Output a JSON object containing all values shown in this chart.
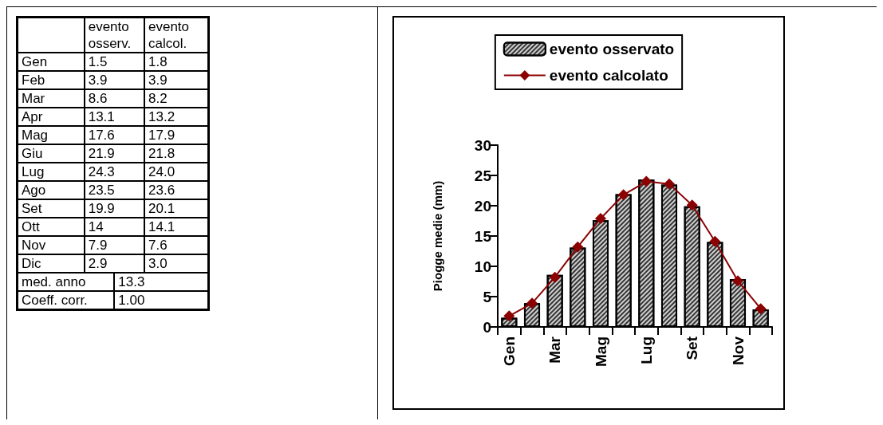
{
  "chart_data": [
    {
      "type": "heatmap",
      "categories": [
        "evento osserv.",
        "evento calcol."
      ],
      "y_categories": [
        "Gen",
        "Feb",
        "Mar",
        "Apr",
        "Mag",
        "Giu",
        "Lug",
        "Ago",
        "Set",
        "Ott",
        "Nov",
        "Dic"
      ],
      "cells": [
        [
          1.5,
          1.8
        ],
        [
          3.9,
          3.9
        ],
        [
          8.6,
          8.2
        ],
        [
          13.1,
          13.2
        ],
        [
          17.6,
          17.9
        ],
        [
          21.9,
          21.8
        ],
        [
          24.3,
          24.0
        ],
        [
          23.5,
          23.6
        ],
        [
          19.9,
          20.1
        ],
        [
          14,
          14.1
        ],
        [
          7.9,
          7.6
        ],
        [
          2.9,
          3.0
        ]
      ],
      "cell_labels": [
        [
          "1.5",
          "1.8"
        ],
        [
          "3.9",
          "3.9"
        ],
        [
          "8.6",
          "8.2"
        ],
        [
          "13.1",
          "13.2"
        ],
        [
          "17.6",
          "17.9"
        ],
        [
          "21.9",
          "21.8"
        ],
        [
          "24.3",
          "24.0"
        ],
        [
          "23.5",
          "23.6"
        ],
        [
          "19.9",
          "20.1"
        ],
        [
          "14",
          "14.1"
        ],
        [
          "7.9",
          "7.6"
        ],
        [
          "2.9",
          "3.0"
        ]
      ],
      "annotations": [
        "med. anno 13.3",
        "Coeff. corr. 1.00"
      ]
    },
    {
      "type": "bar",
      "ylabel": "Piogge medie (mm)",
      "categories": [
        "Gen",
        null,
        "Mar",
        null,
        "Mag",
        null,
        "Lug",
        null,
        "Set",
        null,
        "Nov",
        null
      ],
      "series": [
        {
          "name": "evento osservato",
          "type": "bar",
          "color": "#d0d0d0",
          "values": [
            1.5,
            3.9,
            8.6,
            13.1,
            17.6,
            21.9,
            24.3,
            23.5,
            19.9,
            14,
            7.9,
            2.9
          ]
        },
        {
          "name": "evento calcolato",
          "type": "line",
          "color": "#8b0000",
          "values": [
            1.8,
            3.9,
            8.2,
            13.2,
            17.9,
            21.8,
            24.0,
            23.6,
            20.1,
            14.1,
            7.6,
            3.0
          ]
        }
      ],
      "ylim": [
        0,
        30
      ],
      "yticks": [
        0,
        5,
        10,
        15,
        20,
        25,
        30
      ],
      "grid": false,
      "legend": "top",
      "marker": "diamond"
    }
  ]
}
